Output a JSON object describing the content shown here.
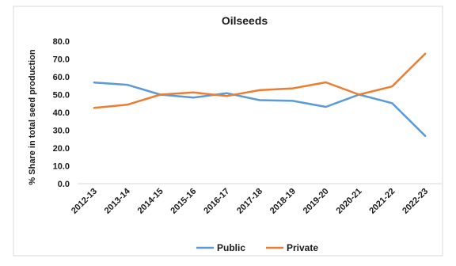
{
  "chart_data": {
    "type": "line",
    "title": "Oilseeds",
    "xlabel": "",
    "ylabel": "% Share in total seed production",
    "categories": [
      "2012-13",
      "2013-14",
      "2014-15",
      "2015-16",
      "2016-17",
      "2017-18",
      "2018-19",
      "2019-20",
      "2020-21",
      "2021-22",
      "2022-23"
    ],
    "series": [
      {
        "name": "Public",
        "color": "#5B9BD5",
        "values": [
          56.8,
          55.5,
          50.0,
          48.3,
          50.8,
          46.9,
          46.5,
          43.1,
          50.0,
          45.2,
          26.8
        ]
      },
      {
        "name": "Private",
        "color": "#ED7D31",
        "values": [
          42.6,
          44.3,
          50.0,
          51.2,
          49.2,
          52.5,
          53.5,
          56.9,
          50.0,
          54.6,
          73.0
        ]
      }
    ],
    "ylim": [
      0,
      80
    ],
    "yticks": [
      "0.0",
      "10.0",
      "20.0",
      "30.0",
      "40.0",
      "50.0",
      "60.0",
      "70.0",
      "80.0"
    ],
    "grid": false,
    "legend_position": "bottom"
  }
}
